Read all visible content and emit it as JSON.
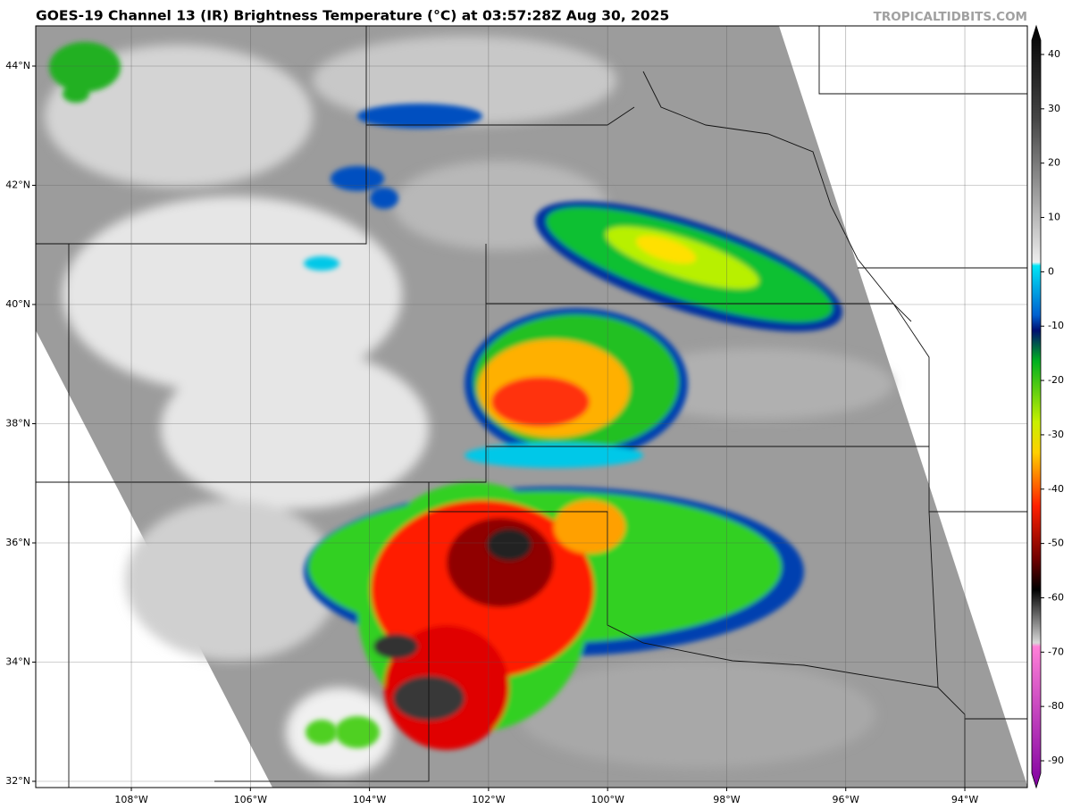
{
  "chart_data": {
    "type": "map",
    "title": "GOES-19 Channel 13 (IR) Brightness Temperature (°C) at 03:57:28Z Aug 30, 2025",
    "source": "TROPICALTIDBITS.COM",
    "xlim": [
      -109.606,
      -92.95
    ],
    "ylim": [
      31.895,
      44.674
    ],
    "xticks": [
      {
        "value": -108,
        "label": "108°W"
      },
      {
        "value": -106,
        "label": "106°W"
      },
      {
        "value": -104,
        "label": "104°W"
      },
      {
        "value": -102,
        "label": "102°W"
      },
      {
        "value": -100,
        "label": "100°W"
      },
      {
        "value": -98,
        "label": "98°W"
      },
      {
        "value": -96,
        "label": "96°W"
      },
      {
        "value": -94,
        "label": "94°W"
      }
    ],
    "yticks": [
      {
        "value": 32,
        "label": "32°N"
      },
      {
        "value": 34,
        "label": "34°N"
      },
      {
        "value": 36,
        "label": "36°N"
      },
      {
        "value": 38,
        "label": "38°N"
      },
      {
        "value": 40,
        "label": "40°N"
      },
      {
        "value": 42,
        "label": "42°N"
      },
      {
        "value": 44,
        "label": "44°N"
      }
    ],
    "grid": true,
    "colorbar": {
      "lim": [
        -94.93,
        45.26
      ],
      "ticks": [
        40,
        30,
        20,
        10,
        0,
        -10,
        -20,
        -30,
        -40,
        -50,
        -60,
        -70,
        -80,
        -90
      ]
    }
  }
}
